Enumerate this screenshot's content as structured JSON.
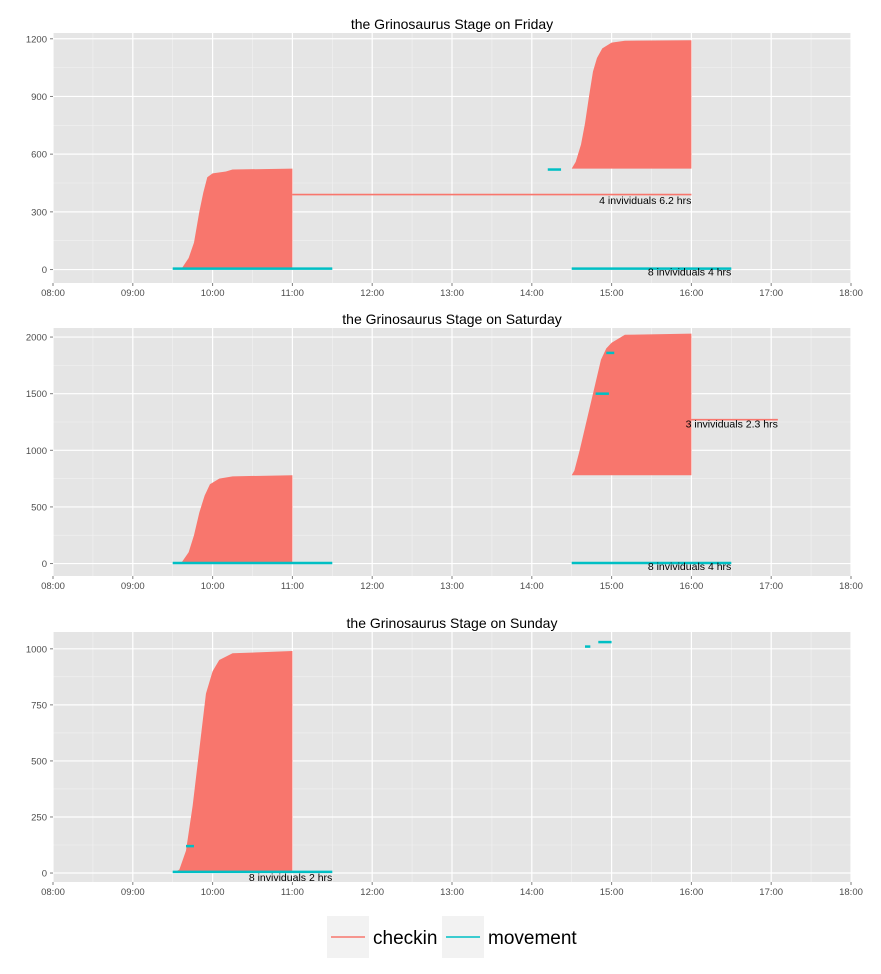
{
  "chart_data": [
    {
      "type": "area",
      "title": "the Grinosaurus Stage on Friday",
      "xlabel": "",
      "ylabel": "",
      "x_ticks": [
        "08:00",
        "09:00",
        "10:00",
        "11:00",
        "12:00",
        "13:00",
        "14:00",
        "15:00",
        "16:00",
        "17:00",
        "18:00"
      ],
      "y_ticks": [
        0,
        300,
        600,
        900,
        1200
      ],
      "xlim": [
        "08:00",
        "18:00"
      ],
      "ylim": [
        -70,
        1230
      ],
      "grid": true,
      "series": [
        {
          "name": "checkin",
          "color": "#F8766D",
          "areas": [
            {
              "base": 0,
              "points": [
                [
                  "09:30",
                  0
                ],
                [
                  "09:37",
                  8
                ],
                [
                  "09:42",
                  60
                ],
                [
                  "09:46",
                  140
                ],
                [
                  "09:50",
                  300
                ],
                [
                  "09:53",
                  400
                ],
                [
                  "09:56",
                  480
                ],
                [
                  "10:00",
                  500
                ],
                [
                  "10:10",
                  510
                ],
                [
                  "10:15",
                  520
                ],
                [
                  "11:00",
                  525
                ]
              ]
            },
            {
              "base": 525,
              "points": [
                [
                  "14:30",
                  525
                ],
                [
                  "14:33",
                  560
                ],
                [
                  "14:37",
                  650
                ],
                [
                  "14:40",
                  760
                ],
                [
                  "14:43",
                  900
                ],
                [
                  "14:46",
                  1030
                ],
                [
                  "14:49",
                  1100
                ],
                [
                  "14:53",
                  1150
                ],
                [
                  "15:00",
                  1180
                ],
                [
                  "15:10",
                  1190
                ],
                [
                  "16:00",
                  1192
                ]
              ]
            }
          ],
          "segments": [
            {
              "x": [
                "11:00",
                "16:00"
              ],
              "y": 390
            }
          ]
        },
        {
          "name": "movement",
          "color": "#00BFC4",
          "segments": [
            {
              "x": [
                "09:30",
                "11:30"
              ],
              "y": 5
            },
            {
              "x": [
                "14:12",
                "14:22"
              ],
              "y": 520
            },
            {
              "x": [
                "14:30",
                "16:30"
              ],
              "y": 5
            }
          ]
        }
      ],
      "annotations": [
        {
          "text": "4 invividuals 6.2 hrs",
          "x": "16:00",
          "y": 340
        },
        {
          "text": "8 invividuals 4 hrs",
          "x": "16:30",
          "y": -30
        }
      ]
    },
    {
      "type": "area",
      "title": "the Grinosaurus Stage on Saturday",
      "xlabel": "",
      "ylabel": "",
      "x_ticks": [
        "08:00",
        "09:00",
        "10:00",
        "11:00",
        "12:00",
        "13:00",
        "14:00",
        "15:00",
        "16:00",
        "17:00",
        "18:00"
      ],
      "y_ticks": [
        0,
        500,
        1000,
        1500,
        2000
      ],
      "xlim": [
        "08:00",
        "18:00"
      ],
      "ylim": [
        -110,
        2080
      ],
      "grid": true,
      "series": [
        {
          "name": "checkin",
          "color": "#F8766D",
          "areas": [
            {
              "base": 0,
              "points": [
                [
                  "09:30",
                  0
                ],
                [
                  "09:37",
                  15
                ],
                [
                  "09:42",
                  100
                ],
                [
                  "09:46",
                  250
                ],
                [
                  "09:50",
                  450
                ],
                [
                  "09:54",
                  600
                ],
                [
                  "09:58",
                  700
                ],
                [
                  "10:05",
                  750
                ],
                [
                  "10:15",
                  770
                ],
                [
                  "11:00",
                  780
                ]
              ]
            },
            {
              "base": 780,
              "points": [
                [
                  "14:30",
                  780
                ],
                [
                  "14:32",
                  820
                ],
                [
                  "14:36",
                  1000
                ],
                [
                  "14:40",
                  1200
                ],
                [
                  "14:44",
                  1400
                ],
                [
                  "14:48",
                  1600
                ],
                [
                  "14:52",
                  1800
                ],
                [
                  "14:56",
                  1900
                ],
                [
                  "15:00",
                  1950
                ],
                [
                  "15:10",
                  2020
                ],
                [
                  "16:00",
                  2030
                ]
              ]
            }
          ],
          "segments": [
            {
              "x": [
                "16:00",
                "17:05"
              ],
              "y": 1270
            }
          ]
        },
        {
          "name": "movement",
          "color": "#00BFC4",
          "segments": [
            {
              "x": [
                "09:30",
                "11:30"
              ],
              "y": 5
            },
            {
              "x": [
                "14:48",
                "14:58"
              ],
              "y": 1500
            },
            {
              "x": [
                "14:56",
                "15:02"
              ],
              "y": 1860
            },
            {
              "x": [
                "14:30",
                "16:30"
              ],
              "y": 5
            }
          ]
        }
      ],
      "annotations": [
        {
          "text": "3 invividuals 2.3 hrs",
          "x": "17:05",
          "y": 1200
        },
        {
          "text": "8 invividuals 4 hrs",
          "x": "16:30",
          "y": -55
        }
      ]
    },
    {
      "type": "area",
      "title": "the Grinosaurus Stage on Sunday",
      "xlabel": "",
      "ylabel": "",
      "x_ticks": [
        "08:00",
        "09:00",
        "10:00",
        "11:00",
        "12:00",
        "13:00",
        "14:00",
        "15:00",
        "16:00",
        "17:00",
        "18:00"
      ],
      "y_ticks": [
        0,
        250,
        500,
        750,
        1000
      ],
      "xlim": [
        "08:00",
        "18:00"
      ],
      "ylim": [
        -40,
        1075
      ],
      "grid": true,
      "series": [
        {
          "name": "checkin",
          "color": "#F8766D",
          "areas": [
            {
              "base": 0,
              "points": [
                [
                  "09:30",
                  0
                ],
                [
                  "09:35",
                  15
                ],
                [
                  "09:40",
                  100
                ],
                [
                  "09:45",
                  300
                ],
                [
                  "09:50",
                  550
                ],
                [
                  "09:55",
                  800
                ],
                [
                  "10:00",
                  900
                ],
                [
                  "10:05",
                  950
                ],
                [
                  "10:15",
                  980
                ],
                [
                  "11:00",
                  990
                ]
              ]
            }
          ],
          "segments": []
        },
        {
          "name": "movement",
          "color": "#00BFC4",
          "segments": [
            {
              "x": [
                "09:30",
                "11:30"
              ],
              "y": 5
            },
            {
              "x": [
                "09:40",
                "09:46"
              ],
              "y": 120
            },
            {
              "x": [
                "14:40",
                "14:44"
              ],
              "y": 1010
            },
            {
              "x": [
                "14:50",
                "15:00"
              ],
              "y": 1030
            }
          ]
        }
      ],
      "annotations": [
        {
          "text": "8 invividuals 2 hrs",
          "x": "11:30",
          "y": -35
        }
      ]
    }
  ],
  "legend": {
    "items": [
      {
        "label": "checkin",
        "color": "#F8766D"
      },
      {
        "label": "movement",
        "color": "#00BFC4"
      }
    ]
  }
}
